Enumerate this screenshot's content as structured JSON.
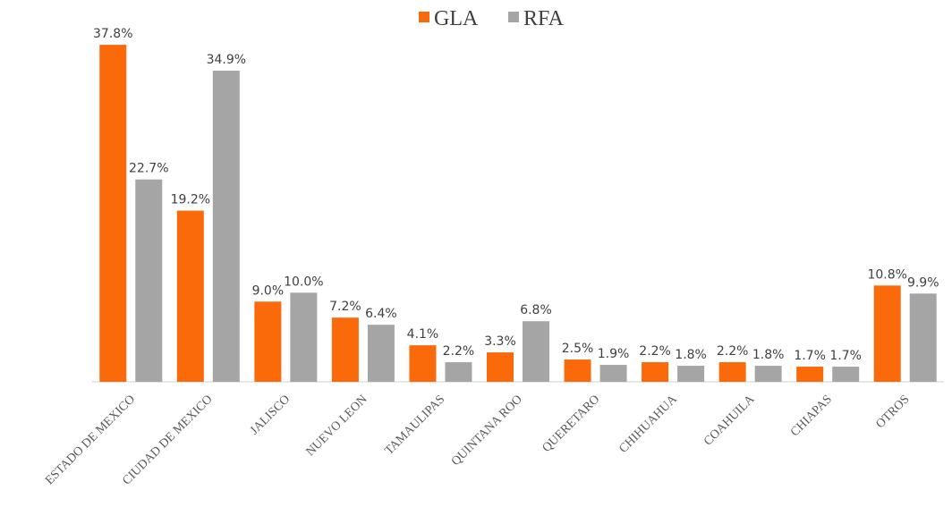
{
  "chart_data": {
    "type": "bar",
    "categories": [
      "ESTADO DE MEXICO",
      "CIUDAD DE MEXICO",
      "JALISCO",
      "NUEVO LEON",
      "TAMAULIPAS",
      "QUINTANA ROO",
      "QUERETARO",
      "CHIHUAHUA",
      "COAHUILA",
      "CHIAPAS",
      "OTROS"
    ],
    "series": [
      {
        "name": "GLA",
        "color": "#fa6a0a",
        "values": [
          37.8,
          19.2,
          9.0,
          7.2,
          4.1,
          3.3,
          2.5,
          2.2,
          2.2,
          1.7,
          10.8
        ],
        "value_labels": [
          "37.8%",
          "19.2%",
          "9.0%",
          "7.2%",
          "4.1%",
          "3.3%",
          "2.5%",
          "2.2%",
          "2.2%",
          "1.7%",
          "10.8%"
        ]
      },
      {
        "name": "RFA",
        "color": "#a5a5a5",
        "values": [
          22.7,
          34.9,
          10.0,
          6.4,
          2.2,
          6.8,
          1.9,
          1.8,
          1.8,
          1.7,
          9.9
        ],
        "value_labels": [
          "22.7%",
          "34.9%",
          "10.0%",
          "6.4%",
          "2.2%",
          "6.8%",
          "1.9%",
          "1.8%",
          "1.8%",
          "1.7%",
          "9.9%"
        ]
      }
    ],
    "legend": "top"
  }
}
